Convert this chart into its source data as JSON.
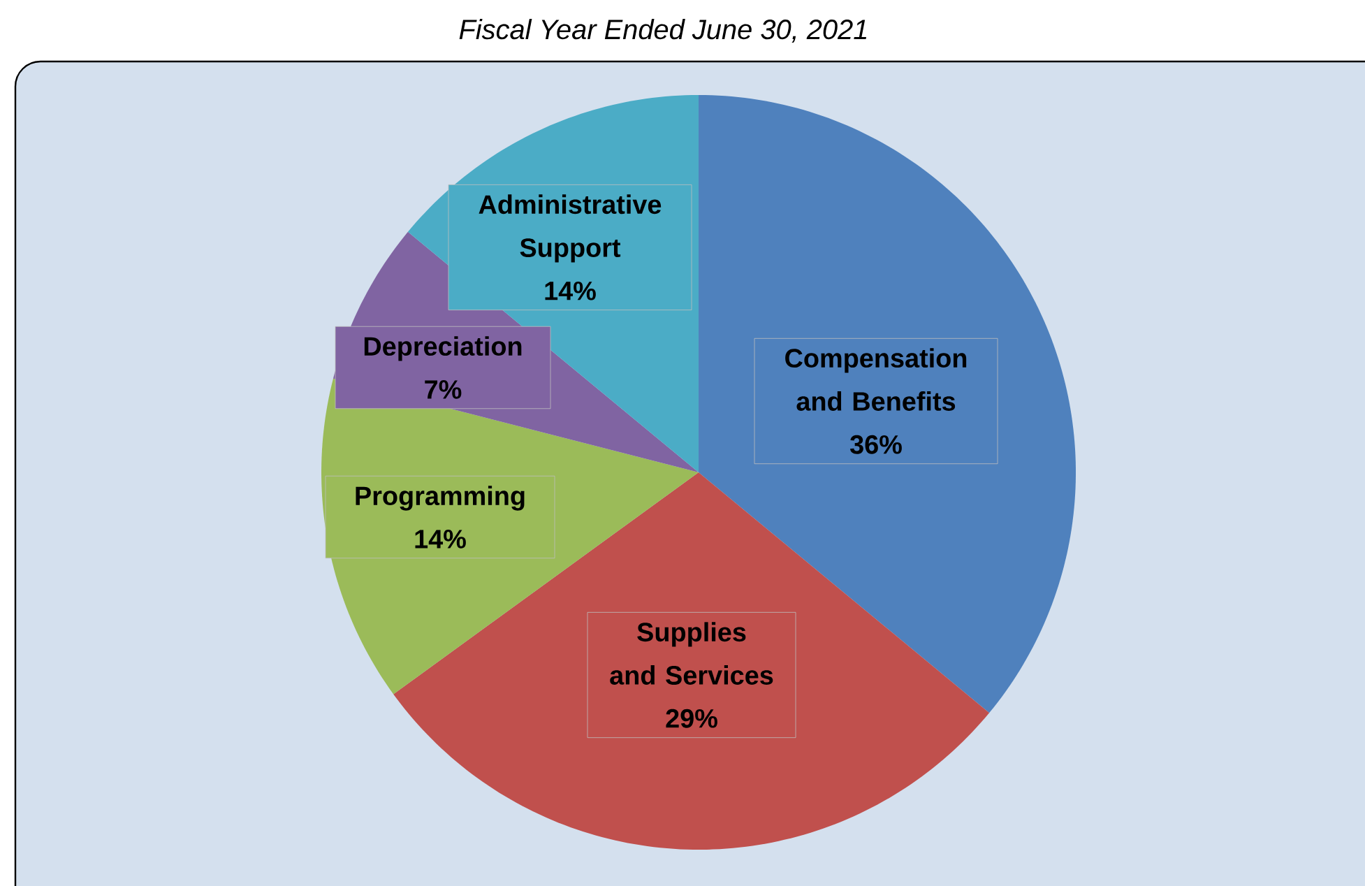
{
  "chart_data": {
    "type": "pie",
    "title": "Fiscal Year Ended June 30, 2021",
    "categories": [
      "Compensation and Benefits",
      "Supplies and Services",
      "Programming",
      "Depreciation",
      "Administrative Support"
    ],
    "values": [
      36,
      29,
      14,
      7,
      14
    ],
    "colors": [
      "#4f81bd",
      "#c0504d",
      "#9bbb59",
      "#8064a2",
      "#4bacc6"
    ],
    "value_labels": [
      "36%",
      "29%",
      "14%",
      "7%",
      "14%"
    ]
  }
}
